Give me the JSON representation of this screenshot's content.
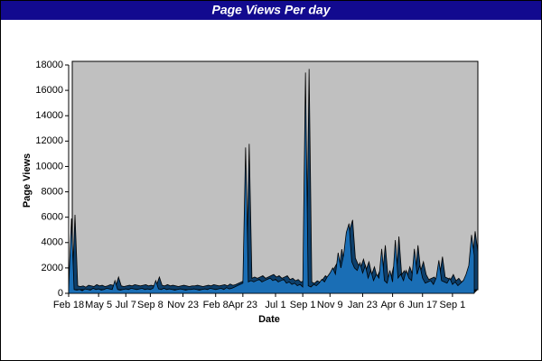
{
  "chart_data": {
    "type": "area",
    "title": "Page Views Per day",
    "x_label": "Date",
    "y_label": "Page Views",
    "categories": [
      "Feb 18",
      null,
      null,
      null,
      null,
      null,
      null,
      null,
      null,
      null,
      null,
      "May 5",
      null,
      null,
      null,
      null,
      null,
      null,
      null,
      null,
      null,
      "Jul 7",
      null,
      null,
      null,
      null,
      null,
      null,
      null,
      null,
      "Sep 8",
      null,
      null,
      null,
      null,
      null,
      null,
      null,
      null,
      null,
      null,
      null,
      "Nov 23",
      null,
      null,
      null,
      null,
      null,
      null,
      null,
      null,
      null,
      null,
      null,
      "Feb 8",
      null,
      null,
      null,
      null,
      null,
      null,
      null,
      null,
      null,
      "Apr 23",
      null,
      null,
      null,
      null,
      null,
      null,
      null,
      null,
      null,
      null,
      null,
      "Jul 1",
      null,
      null,
      null,
      null,
      null,
      null,
      null,
      null,
      null,
      "Sep 1",
      null,
      null,
      null,
      null,
      null,
      null,
      null,
      null,
      null,
      "Nov 9",
      null,
      null,
      null,
      null,
      null,
      null,
      null,
      null,
      null,
      null,
      null,
      "Jan 23",
      null,
      null,
      null,
      null,
      null,
      null,
      null,
      null,
      null,
      null,
      "Apr 6",
      null,
      null,
      null,
      null,
      null,
      null,
      null,
      null,
      null,
      null,
      "Jun 17",
      null,
      null,
      null,
      null,
      null,
      null,
      null,
      null,
      null,
      null,
      "Sep 1",
      null,
      null,
      null,
      null,
      null,
      null,
      null,
      null
    ],
    "values": [
      400,
      5900,
      300,
      250,
      300,
      200,
      350,
      300,
      250,
      400,
      300,
      350,
      250,
      300,
      400,
      350,
      300,
      1000,
      300,
      250,
      300,
      350,
      300,
      400,
      350,
      300,
      350,
      400,
      300,
      350,
      300,
      400,
      1000,
      350,
      300,
      400,
      300,
      350,
      300,
      250,
      300,
      350,
      300,
      250,
      300,
      300,
      350,
      300,
      250,
      300,
      350,
      300,
      400,
      350,
      300,
      350,
      400,
      300,
      450,
      350,
      400,
      500,
      600,
      700,
      800,
      11500,
      900,
      1000,
      900,
      1000,
      1100,
      900,
      1000,
      1100,
      1200,
      1000,
      1100,
      900,
      1000,
      1100,
      800,
      900,
      700,
      800,
      600,
      700,
      500,
      17400,
      600,
      500,
      700,
      600,
      800,
      1100,
      900,
      1300,
      1600,
      2000,
      1500,
      3200,
      2000,
      3000,
      4800,
      5500,
      2500,
      2000,
      1800,
      2400,
      1600,
      2200,
      1200,
      1800,
      1000,
      1500,
      1200,
      3500,
      1000,
      800,
      1800,
      900,
      4200,
      1200,
      1500,
      1000,
      1800,
      1200,
      1000,
      3500,
      1500,
      2200,
      1200,
      800,
      900,
      1000,
      700,
      1200,
      2600,
      1000,
      900,
      800,
      1200,
      700,
      900,
      600,
      800,
      1000,
      1500,
      2200,
      4600,
      3000
    ],
    "color": "#1a6eb5",
    "ylim": [
      0,
      18000
    ],
    "yticks": [
      0,
      2000,
      4000,
      6000,
      8000,
      10000,
      12000,
      14000,
      16000,
      18000
    ]
  }
}
